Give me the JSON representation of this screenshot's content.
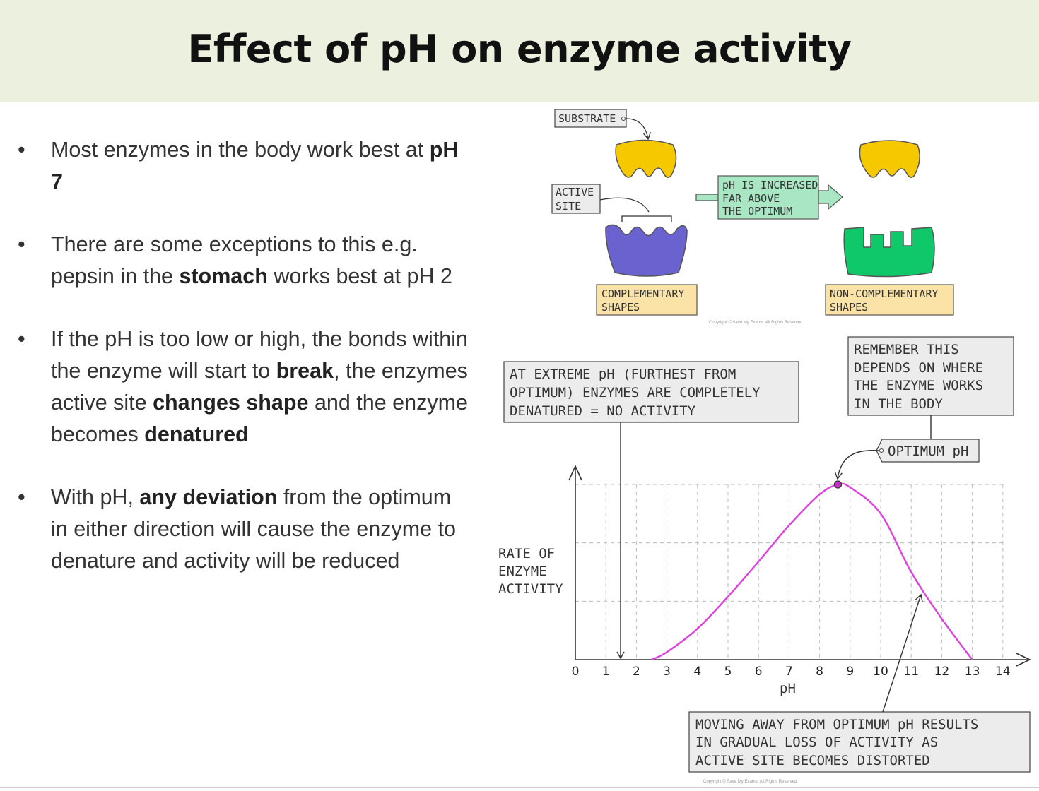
{
  "title": "Effect of pH on enzyme activity",
  "bullets": [
    {
      "parts": [
        {
          "t": "Most enzymes in the body work best at "
        },
        {
          "t": "pH 7",
          "b": true
        }
      ]
    },
    {
      "parts": [
        {
          "t": "There are some exceptions to this e.g. pepsin in the "
        },
        {
          "t": "stomach",
          "b": true
        },
        {
          "t": " works best at pH 2"
        }
      ]
    },
    {
      "parts": [
        {
          "t": "If the pH is too low or high, the bonds within the enzyme will start to "
        },
        {
          "t": "break",
          "b": true
        },
        {
          "t": ", the enzymes active site "
        },
        {
          "t": "changes shape",
          "b": true
        },
        {
          "t": " and the enzyme becomes "
        },
        {
          "t": "denatured",
          "b": true
        }
      ]
    },
    {
      "parts": [
        {
          "t": "With pH, "
        },
        {
          "t": "any deviation",
          "b": true
        },
        {
          "t": " from the optimum in either direction will cause the enzyme to denature and activity will be reduced"
        }
      ]
    }
  ],
  "diagram": {
    "substrate_label": "SUBSTRATE",
    "active_site_label": [
      "ACTIVE",
      "SITE"
    ],
    "arrow_label": [
      "pH IS INCREASED",
      "FAR ABOVE",
      "THE OPTIMUM"
    ],
    "complementary_label": [
      "COMPLEMENTARY",
      "SHAPES"
    ],
    "non_complementary_label": [
      "NON-COMPLEMENTARY",
      "SHAPES"
    ],
    "copyright": "Copyright © Save My Exams. All Rights Reserved"
  },
  "chart_data": {
    "type": "line",
    "title": "",
    "xlabel": "pH",
    "ylabel": [
      "RATE OF",
      "ENZYME",
      "ACTIVITY"
    ],
    "xlim": [
      0,
      14
    ],
    "ylim": [
      0,
      3
    ],
    "x_ticks": [
      0,
      1,
      2,
      3,
      4,
      5,
      6,
      7,
      8,
      9,
      10,
      11,
      12,
      13,
      14
    ],
    "grid": true,
    "series": [
      {
        "name": "enzyme activity",
        "color": "#e040e0",
        "x": [
          2.5,
          3,
          4,
          5,
          6,
          7,
          8,
          8.6,
          9,
          10,
          11,
          12,
          13
        ],
        "y": [
          0,
          0.13,
          0.53,
          1.08,
          1.68,
          2.3,
          2.83,
          3.0,
          2.95,
          2.5,
          1.5,
          0.7,
          0
        ]
      }
    ],
    "optimum_point": {
      "x": 8.6,
      "y": 3.0
    },
    "annotations": {
      "extreme": [
        "AT EXTREME pH (FURTHEST FROM",
        "OPTIMUM) ENZYMES ARE COMPLETELY",
        "DENATURED = NO ACTIVITY"
      ],
      "remember": [
        "REMEMBER THIS",
        "DEPENDS ON WHERE",
        "THE ENZYME WORKS",
        "IN THE BODY"
      ],
      "optimum": "OPTIMUM pH",
      "moving": [
        "MOVING AWAY FROM OPTIMUM pH RESULTS",
        "IN GRADUAL LOSS OF ACTIVITY AS",
        "ACTIVE SITE BECOMES DISTORTED"
      ]
    },
    "copyright": "Copyright © Save My Exams. All Rights Reserved"
  }
}
